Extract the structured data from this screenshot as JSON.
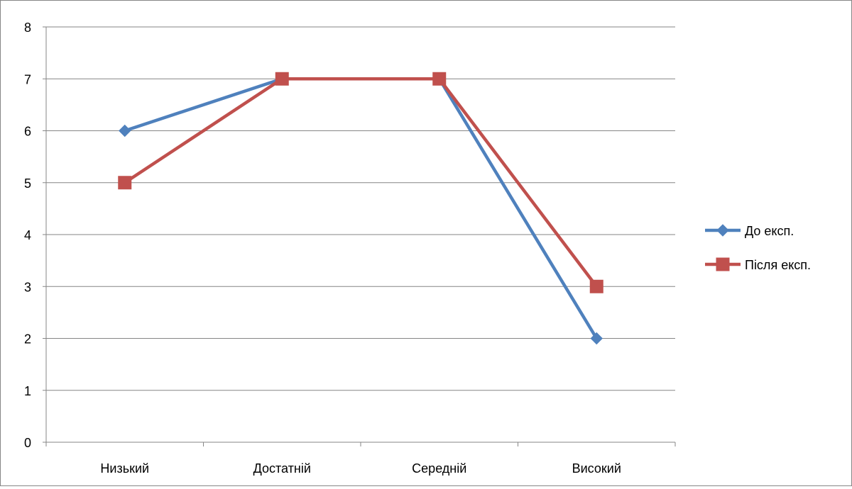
{
  "chart_data": {
    "type": "line",
    "title": "",
    "xlabel": "",
    "ylabel": "",
    "categories": [
      "Низький",
      "Достатній",
      "Середній",
      "Високий"
    ],
    "ylim": [
      0,
      8
    ],
    "yticks": [
      0,
      1,
      2,
      3,
      4,
      5,
      6,
      7,
      8
    ],
    "grid": true,
    "legend_position": "right",
    "series": [
      {
        "name": "До експ.",
        "values": [
          6,
          7,
          7,
          2
        ],
        "color": "#4F81BD",
        "marker": "diamond"
      },
      {
        "name": "Після експ.",
        "values": [
          5,
          7,
          7,
          3
        ],
        "color": "#C0504D",
        "marker": "square"
      }
    ]
  }
}
